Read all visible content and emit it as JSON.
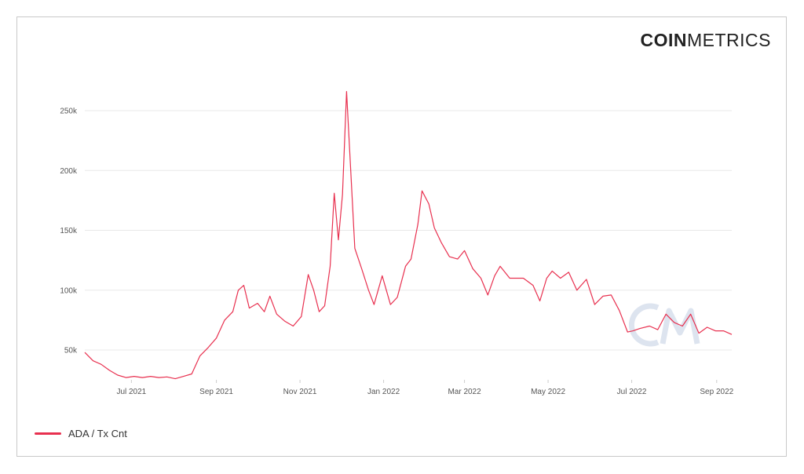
{
  "logo": {
    "bold": "COIN",
    "thin": "METRICS"
  },
  "legend": {
    "label": "ADA / Tx Cnt",
    "color": "#e8304f"
  },
  "watermark": {
    "icon": "cm-watermark-icon"
  },
  "chart_data": {
    "type": "line",
    "title": "",
    "xlabel": "",
    "ylabel": "",
    "ylim": [
      25000,
      270000
    ],
    "y_ticks": [
      50000,
      100000,
      150000,
      200000,
      250000
    ],
    "y_tick_labels": [
      "50k",
      "100k",
      "150k",
      "200k",
      "250k"
    ],
    "x_range": [
      "2021-05-28",
      "2022-09-12"
    ],
    "x_ticks": [
      "2021-07-01",
      "2021-09-01",
      "2021-11-01",
      "2022-01-01",
      "2022-03-01",
      "2022-05-01",
      "2022-07-01",
      "2022-09-01"
    ],
    "x_tick_labels": [
      "Jul 2021",
      "Sep 2021",
      "Nov 2021",
      "Jan 2022",
      "Mar 2022",
      "May 2022",
      "Jul 2022",
      "Sep 2022"
    ],
    "grid": "horizontal",
    "legend_position": "bottom-left",
    "series": [
      {
        "name": "ADA / Tx Cnt",
        "color": "#e8304f",
        "points": [
          [
            "2021-05-28",
            48000
          ],
          [
            "2021-06-03",
            41000
          ],
          [
            "2021-06-09",
            38000
          ],
          [
            "2021-06-15",
            33000
          ],
          [
            "2021-06-21",
            29000
          ],
          [
            "2021-06-27",
            27000
          ],
          [
            "2021-07-03",
            28000
          ],
          [
            "2021-07-09",
            27000
          ],
          [
            "2021-07-15",
            28000
          ],
          [
            "2021-07-21",
            27000
          ],
          [
            "2021-07-27",
            27500
          ],
          [
            "2021-08-02",
            26000
          ],
          [
            "2021-08-08",
            28000
          ],
          [
            "2021-08-14",
            30000
          ],
          [
            "2021-08-20",
            45000
          ],
          [
            "2021-08-26",
            52000
          ],
          [
            "2021-09-01",
            60000
          ],
          [
            "2021-09-07",
            75000
          ],
          [
            "2021-09-13",
            82000
          ],
          [
            "2021-09-17",
            100000
          ],
          [
            "2021-09-21",
            104000
          ],
          [
            "2021-09-25",
            85000
          ],
          [
            "2021-10-01",
            89000
          ],
          [
            "2021-10-06",
            82000
          ],
          [
            "2021-10-10",
            95000
          ],
          [
            "2021-10-15",
            80000
          ],
          [
            "2021-10-21",
            74000
          ],
          [
            "2021-10-27",
            70000
          ],
          [
            "2021-11-02",
            78000
          ],
          [
            "2021-11-07",
            113000
          ],
          [
            "2021-11-11",
            100000
          ],
          [
            "2021-11-15",
            82000
          ],
          [
            "2021-11-19",
            87000
          ],
          [
            "2021-11-23",
            120000
          ],
          [
            "2021-11-26",
            181000
          ],
          [
            "2021-11-29",
            142000
          ],
          [
            "2021-12-02",
            180000
          ],
          [
            "2021-12-05",
            266000
          ],
          [
            "2021-12-08",
            200000
          ],
          [
            "2021-12-11",
            135000
          ],
          [
            "2021-12-16",
            118000
          ],
          [
            "2021-12-21",
            100000
          ],
          [
            "2021-12-25",
            88000
          ],
          [
            "2021-12-31",
            112000
          ],
          [
            "2022-01-06",
            88000
          ],
          [
            "2022-01-11",
            94000
          ],
          [
            "2022-01-17",
            120000
          ],
          [
            "2022-01-21",
            126000
          ],
          [
            "2022-01-26",
            155000
          ],
          [
            "2022-01-29",
            183000
          ],
          [
            "2022-02-03",
            172000
          ],
          [
            "2022-02-07",
            152000
          ],
          [
            "2022-02-12",
            140000
          ],
          [
            "2022-02-18",
            128000
          ],
          [
            "2022-02-24",
            126000
          ],
          [
            "2022-03-01",
            133000
          ],
          [
            "2022-03-07",
            118000
          ],
          [
            "2022-03-13",
            110000
          ],
          [
            "2022-03-18",
            96000
          ],
          [
            "2022-03-23",
            112000
          ],
          [
            "2022-03-27",
            120000
          ],
          [
            "2022-04-03",
            110000
          ],
          [
            "2022-04-13",
            110000
          ],
          [
            "2022-04-20",
            104000
          ],
          [
            "2022-04-25",
            91000
          ],
          [
            "2022-04-30",
            110000
          ],
          [
            "2022-05-04",
            116000
          ],
          [
            "2022-05-10",
            110000
          ],
          [
            "2022-05-16",
            115000
          ],
          [
            "2022-05-22",
            100000
          ],
          [
            "2022-05-29",
            109000
          ],
          [
            "2022-06-04",
            88000
          ],
          [
            "2022-06-10",
            95000
          ],
          [
            "2022-06-16",
            96000
          ],
          [
            "2022-06-22",
            83000
          ],
          [
            "2022-06-28",
            65000
          ],
          [
            "2022-07-02",
            66000
          ],
          [
            "2022-07-07",
            68000
          ],
          [
            "2022-07-14",
            70000
          ],
          [
            "2022-07-20",
            67000
          ],
          [
            "2022-07-26",
            80000
          ],
          [
            "2022-08-01",
            73000
          ],
          [
            "2022-08-07",
            70000
          ],
          [
            "2022-08-13",
            80000
          ],
          [
            "2022-08-19",
            64000
          ],
          [
            "2022-08-25",
            69000
          ],
          [
            "2022-08-31",
            66000
          ],
          [
            "2022-09-06",
            66000
          ],
          [
            "2022-09-12",
            63000
          ]
        ]
      }
    ]
  }
}
